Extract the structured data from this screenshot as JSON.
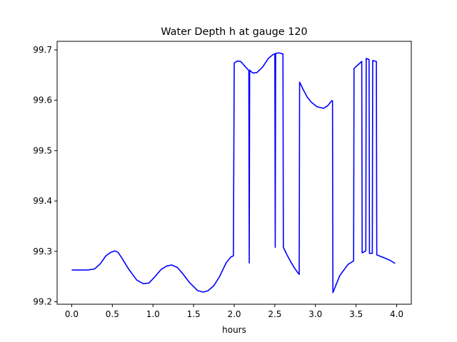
{
  "chart_data": {
    "type": "line",
    "title": "Water Depth h at gauge 120",
    "xlabel": "hours",
    "ylabel": "",
    "xlim": [
      -0.18,
      4.18
    ],
    "ylim": [
      99.195,
      99.717
    ],
    "xticks": [
      0.0,
      0.5,
      1.0,
      1.5,
      2.0,
      2.5,
      3.0,
      3.5,
      4.0
    ],
    "xtick_labels": [
      "0.0",
      "0.5",
      "1.0",
      "1.5",
      "2.0",
      "2.5",
      "3.0",
      "3.5",
      "4.0"
    ],
    "yticks": [
      99.2,
      99.3,
      99.4,
      99.5,
      99.6,
      99.7
    ],
    "ytick_labels": [
      "99.2",
      "99.3",
      "99.4",
      "99.5",
      "99.6",
      "99.7"
    ],
    "grid": false,
    "series": [
      {
        "color": "#0000ff",
        "x": [
          0.0,
          0.1,
          0.2,
          0.28,
          0.35,
          0.42,
          0.48,
          0.53,
          0.57,
          0.62,
          0.7,
          0.8,
          0.88,
          0.95,
          1.02,
          1.1,
          1.17,
          1.23,
          1.3,
          1.36,
          1.45,
          1.55,
          1.62,
          1.68,
          1.75,
          1.82,
          1.9,
          1.96,
          1.99,
          2.0,
          2.04,
          2.08,
          2.14,
          2.18,
          2.185,
          2.19,
          2.2,
          2.23,
          2.28,
          2.35,
          2.42,
          2.48,
          2.5,
          2.505,
          2.51,
          2.55,
          2.6,
          2.605,
          2.65,
          2.7,
          2.75,
          2.8,
          2.805,
          2.85,
          2.9,
          2.95,
          3.02,
          3.1,
          3.15,
          3.2,
          3.21,
          3.215,
          3.25,
          3.3,
          3.4,
          3.47,
          3.475,
          3.5,
          3.57,
          3.575,
          3.62,
          3.625,
          3.66,
          3.665,
          3.7,
          3.705,
          3.75,
          3.755,
          3.85,
          3.92,
          3.98
        ],
        "y": [
          99.263,
          99.263,
          99.263,
          99.265,
          99.275,
          99.291,
          99.298,
          99.301,
          99.298,
          99.286,
          99.265,
          99.243,
          99.236,
          99.237,
          99.249,
          99.264,
          99.271,
          99.273,
          99.268,
          99.257,
          99.238,
          99.222,
          99.219,
          99.222,
          99.232,
          99.25,
          99.277,
          99.289,
          99.291,
          99.674,
          99.678,
          99.677,
          99.666,
          99.659,
          99.277,
          99.66,
          99.658,
          99.654,
          99.655,
          99.666,
          99.683,
          99.691,
          99.692,
          99.308,
          99.693,
          99.694,
          99.692,
          99.308,
          99.293,
          99.278,
          99.265,
          99.254,
          99.636,
          99.621,
          99.606,
          99.596,
          99.587,
          99.584,
          99.589,
          99.599,
          99.599,
          99.218,
          99.232,
          99.252,
          99.274,
          99.281,
          99.663,
          99.667,
          99.677,
          99.297,
          99.301,
          99.683,
          99.681,
          99.296,
          99.296,
          99.679,
          99.677,
          99.293,
          99.287,
          99.282,
          99.276
        ]
      }
    ]
  }
}
